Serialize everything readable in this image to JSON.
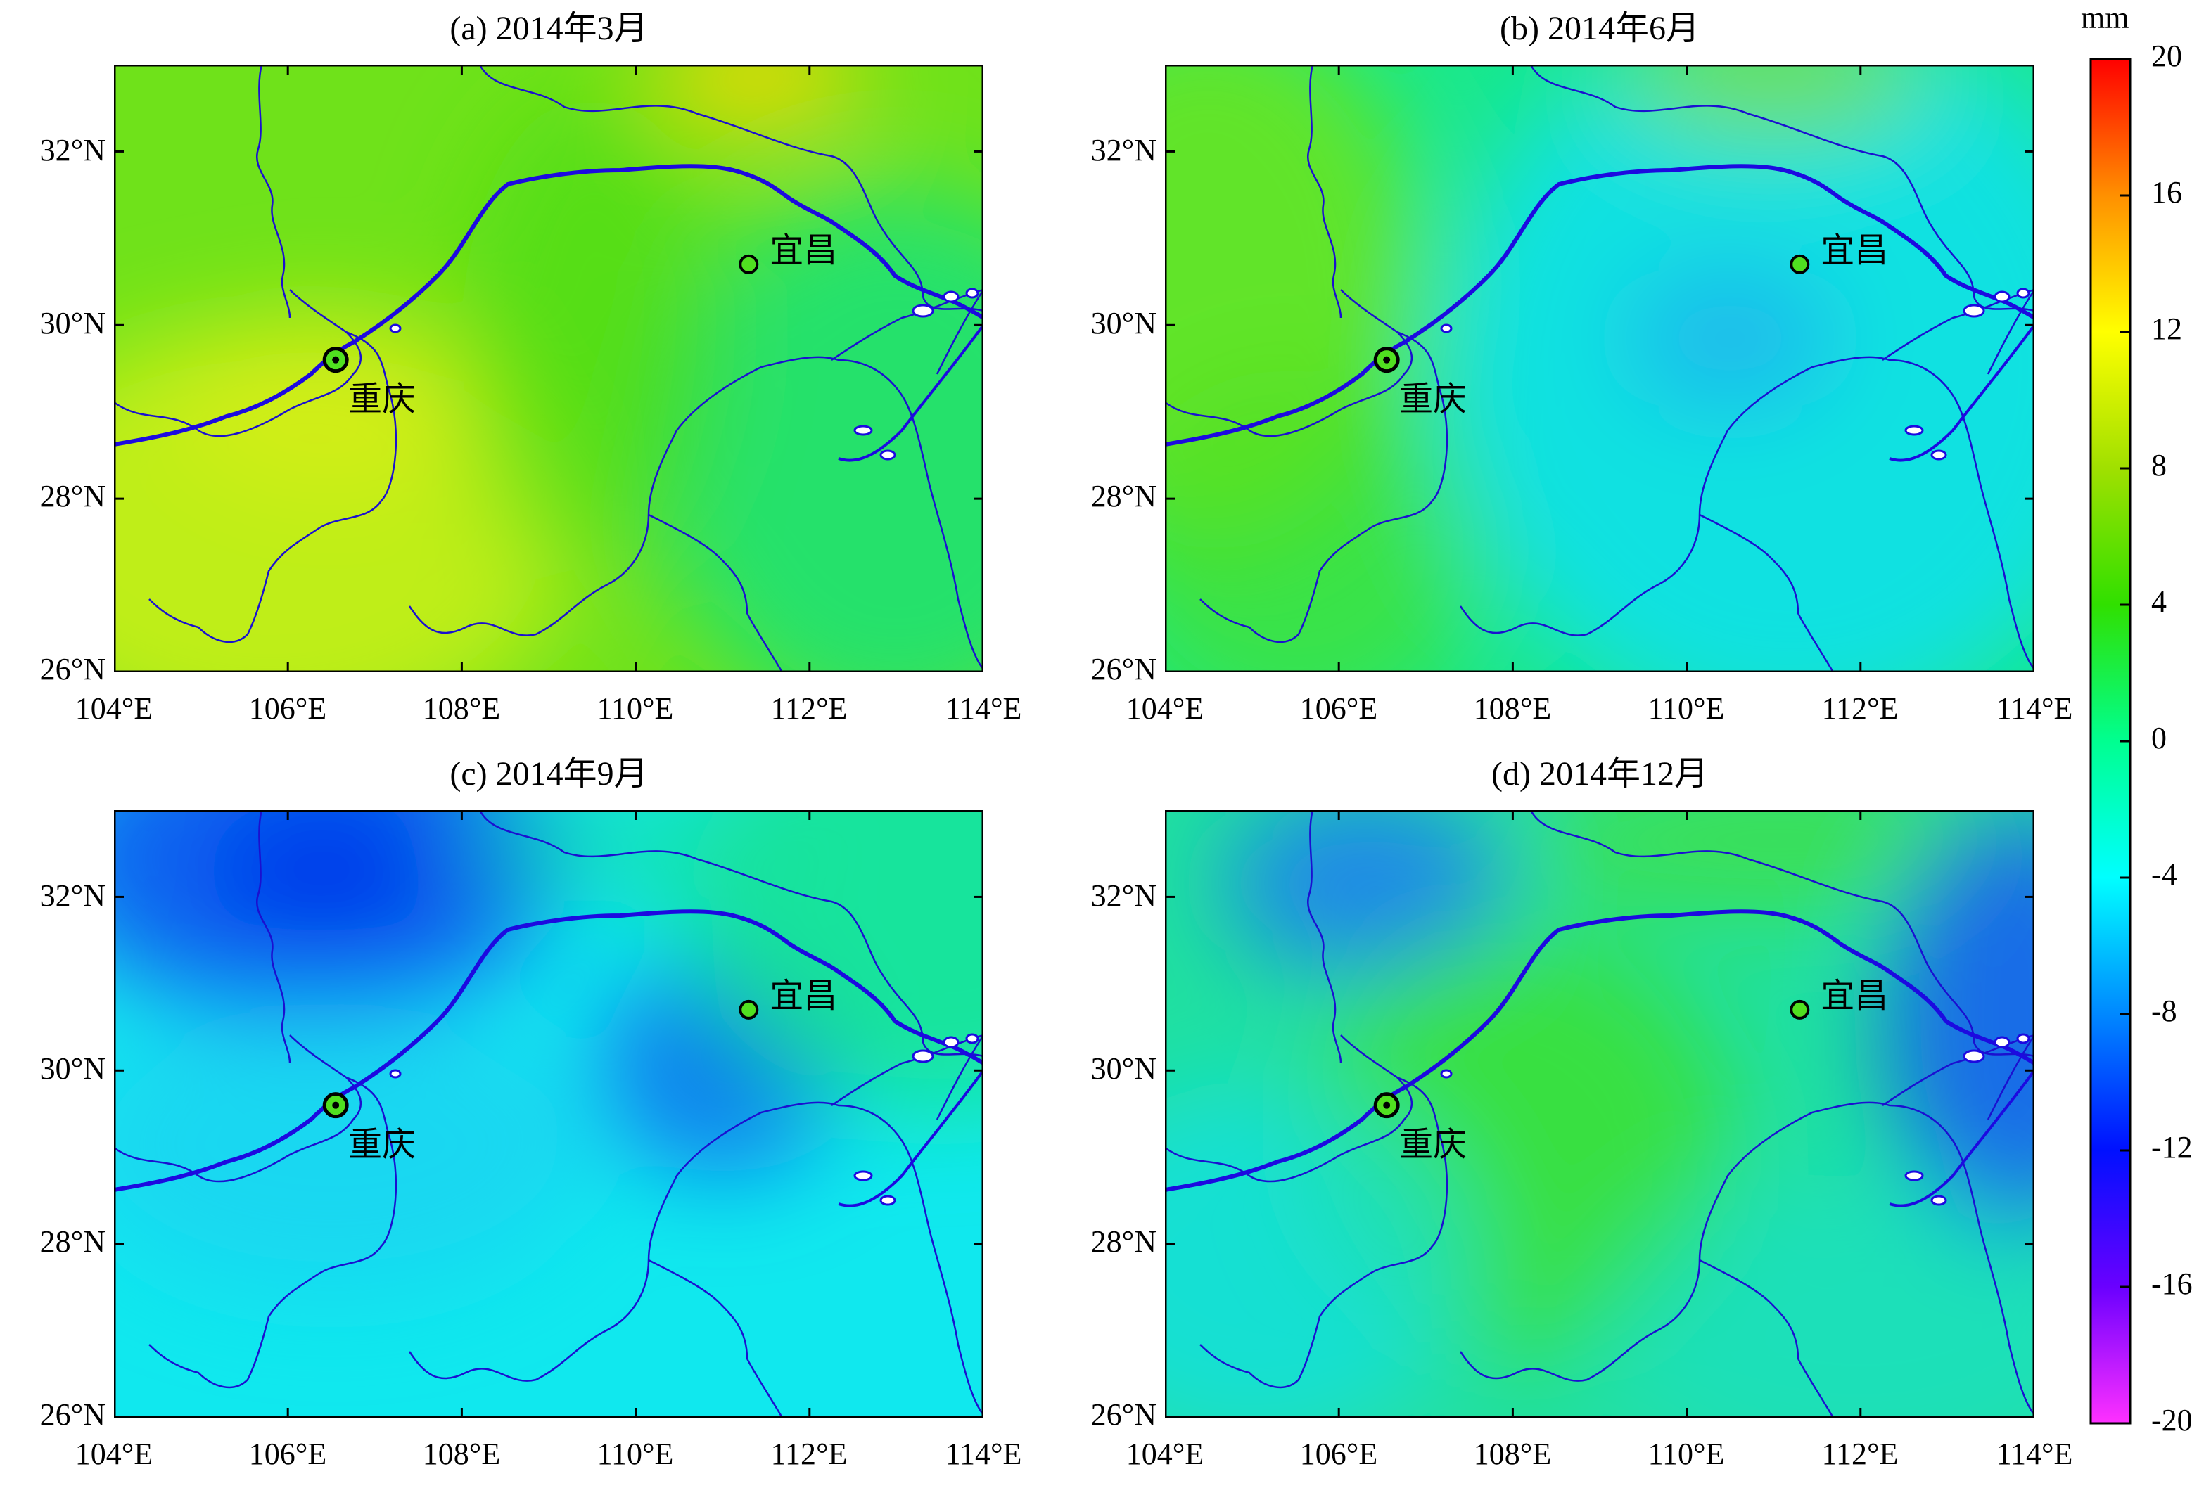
{
  "figure": {
    "panels": [
      {
        "id": "a",
        "title": "(a) 2014年3月",
        "theme": "mar"
      },
      {
        "id": "b",
        "title": "(b) 2014年6月",
        "theme": "jun"
      },
      {
        "id": "c",
        "title": "(c) 2014年9月",
        "theme": "sep"
      },
      {
        "id": "d",
        "title": "(d) 2014年12月",
        "theme": "dec"
      }
    ],
    "lat_ticks": [
      "32°N",
      "30°N",
      "28°N",
      "26°N"
    ],
    "lon_ticks": [
      "104°E",
      "106°E",
      "108°E",
      "110°E",
      "112°E",
      "114°E"
    ],
    "cities": [
      {
        "name": "重庆",
        "lon": 106.55,
        "lat": 29.6
      },
      {
        "name": "宜昌",
        "lon": 111.3,
        "lat": 30.7
      }
    ],
    "extent": {
      "lon": [
        104,
        114
      ],
      "lat": [
        26,
        33
      ]
    },
    "colorbar": {
      "unit": "mm",
      "ticks": [
        "20",
        "16",
        "12",
        "8",
        "4",
        "0",
        "-4",
        "-8",
        "-12",
        "-16",
        "-20"
      ],
      "range": [
        -20,
        20
      ],
      "colors": [
        "#ff30ff",
        "#6a00ff",
        "#0010ff",
        "#0088ff",
        "#00ffff",
        "#00ff90",
        "#30e000",
        "#a0e000",
        "#ffff00",
        "#ff9000",
        "#ff0000"
      ]
    }
  }
}
